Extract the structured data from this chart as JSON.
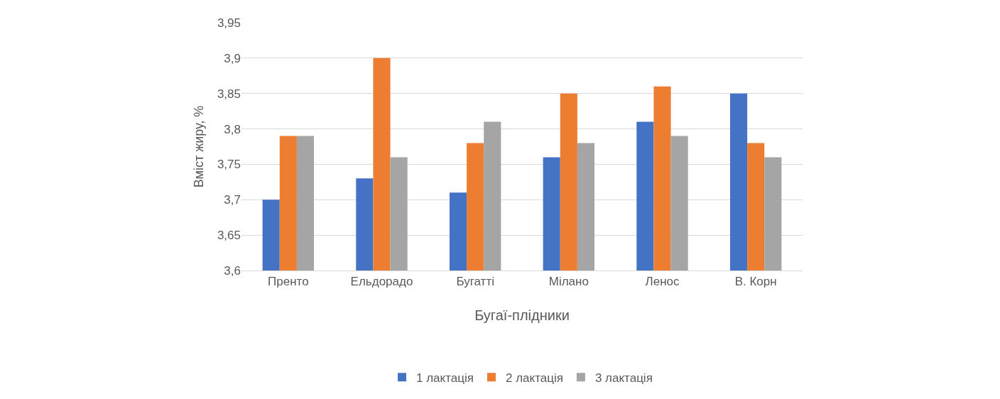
{
  "chart_data": {
    "type": "bar",
    "xlabel": "Бугаї-плідники",
    "ylabel": "Вміст жиру, %",
    "categories": [
      "Пренто",
      "Ельдорадо",
      "Бугатті",
      "Мілано",
      "Ленос",
      "В. Корн"
    ],
    "series": [
      {
        "name": "1 лактація",
        "color": "#4472c4",
        "values": [
          3.7,
          3.73,
          3.71,
          3.76,
          3.81,
          3.85
        ]
      },
      {
        "name": "2 лактація",
        "color": "#ed7d31",
        "values": [
          3.79,
          3.9,
          3.78,
          3.85,
          3.86,
          3.78
        ]
      },
      {
        "name": "3 лактація",
        "color": "#a5a5a5",
        "values": [
          3.79,
          3.76,
          3.81,
          3.78,
          3.79,
          3.76
        ]
      }
    ],
    "ylim": [
      3.6,
      3.95
    ],
    "yticks": [
      {
        "value": 3.6,
        "label": "3,6"
      },
      {
        "value": 3.65,
        "label": "3,65"
      },
      {
        "value": 3.7,
        "label": "3,7"
      },
      {
        "value": 3.75,
        "label": "3,75"
      },
      {
        "value": 3.8,
        "label": "3,8"
      },
      {
        "value": 3.85,
        "label": "3,85"
      },
      {
        "value": 3.9,
        "label": "3,9"
      },
      {
        "value": 3.95,
        "label": "3,95"
      }
    ],
    "grid": "y",
    "legend": "bottom"
  }
}
